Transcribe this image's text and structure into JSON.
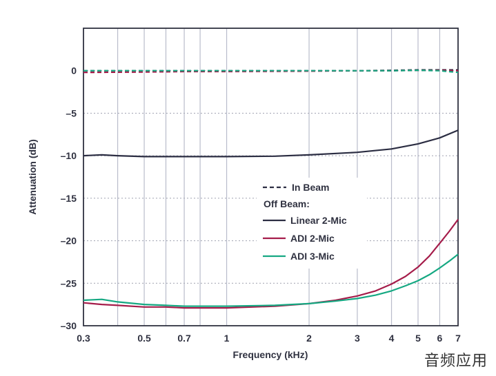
{
  "chart_data": {
    "type": "line",
    "xlabel": "Frequency (kHz)",
    "ylabel": "Attenuation (dB)",
    "x_scale": "log",
    "xlim": [
      0.3,
      7
    ],
    "ylim": [
      -30,
      5
    ],
    "x_ticks": [
      0.3,
      0.5,
      0.7,
      1,
      2,
      3,
      4,
      5,
      6,
      7
    ],
    "x_tick_labels": [
      "0.3",
      "0.5",
      "0.7",
      "1",
      "2",
      "3",
      "4",
      "5",
      "6",
      "7"
    ],
    "x_gridlines": [
      0.4,
      0.5,
      0.6,
      0.7,
      0.8,
      1,
      2,
      3,
      4,
      5,
      6
    ],
    "y_ticks": [
      0,
      -5,
      -10,
      -15,
      -20,
      -25,
      -30
    ],
    "y_tick_labels": [
      "0",
      "–5",
      "–10",
      "–15",
      "–20",
      "–25",
      "–30"
    ],
    "grid": true,
    "legend": {
      "placement": "center-right",
      "in_beam_label": "In Beam",
      "off_beam_header": "Off Beam:",
      "entries": [
        "Linear 2-Mic",
        "ADI 2-Mic",
        "ADI 3-Mic"
      ]
    },
    "series": [
      {
        "name": "Linear 2-Mic",
        "group": "Off Beam",
        "style": "solid",
        "color": "#2b2d42",
        "x": [
          0.3,
          0.35,
          0.4,
          0.5,
          0.6,
          0.7,
          0.8,
          1,
          1.5,
          2,
          3,
          4,
          5,
          6,
          7
        ],
        "y": [
          -10,
          -9.9,
          -10,
          -10.1,
          -10.1,
          -10.1,
          -10.1,
          -10.1,
          -10.05,
          -9.9,
          -9.6,
          -9.2,
          -8.6,
          -7.9,
          -7.0
        ]
      },
      {
        "name": "ADI 2-Mic",
        "group": "Off Beam",
        "style": "solid",
        "color": "#a51c4a",
        "x": [
          0.3,
          0.35,
          0.4,
          0.5,
          0.6,
          0.7,
          0.8,
          1,
          1.5,
          2,
          2.5,
          3,
          3.5,
          4,
          4.5,
          5,
          5.5,
          6,
          6.5,
          7
        ],
        "y": [
          -27.3,
          -27.5,
          -27.6,
          -27.8,
          -27.8,
          -27.9,
          -27.9,
          -27.9,
          -27.7,
          -27.4,
          -27.0,
          -26.5,
          -25.9,
          -25.1,
          -24.2,
          -23.1,
          -21.8,
          -20.3,
          -18.9,
          -17.5
        ]
      },
      {
        "name": "ADI 3-Mic",
        "group": "Off Beam",
        "style": "solid",
        "color": "#15a882",
        "x": [
          0.3,
          0.35,
          0.4,
          0.5,
          0.6,
          0.7,
          0.8,
          1,
          1.5,
          2,
          2.5,
          3,
          3.5,
          4,
          4.5,
          5,
          5.5,
          6,
          6.5,
          7
        ],
        "y": [
          -27.0,
          -26.9,
          -27.2,
          -27.5,
          -27.6,
          -27.7,
          -27.7,
          -27.7,
          -27.6,
          -27.4,
          -27.1,
          -26.8,
          -26.4,
          -25.9,
          -25.3,
          -24.7,
          -24.0,
          -23.2,
          -22.4,
          -21.6
        ]
      },
      {
        "name": "Linear 2-Mic (In Beam)",
        "group": "In Beam",
        "style": "dashed",
        "color": "#2b2d42",
        "x": [
          0.3,
          0.5,
          0.7,
          1,
          2,
          3,
          4,
          5,
          6,
          7
        ],
        "y": [
          0,
          0,
          0,
          0,
          0,
          0,
          0.05,
          0.1,
          0.1,
          0.1
        ]
      },
      {
        "name": "ADI 2-Mic (In Beam)",
        "group": "In Beam",
        "style": "dashed",
        "color": "#a51c4a",
        "x": [
          0.3,
          0.5,
          0.7,
          1,
          2,
          3,
          4,
          5,
          6,
          7
        ],
        "y": [
          -0.2,
          -0.15,
          -0.1,
          -0.1,
          -0.05,
          0,
          0,
          0.05,
          0.05,
          0
        ]
      },
      {
        "name": "ADI 3-Mic (In Beam)",
        "group": "In Beam",
        "style": "dashed",
        "color": "#15a882",
        "x": [
          0.3,
          0.5,
          0.7,
          1,
          2,
          3,
          4,
          5,
          6,
          7
        ],
        "y": [
          0,
          0,
          0,
          0,
          0,
          0,
          0,
          0.05,
          0,
          -0.2
        ]
      }
    ]
  },
  "watermark": "音频应用"
}
